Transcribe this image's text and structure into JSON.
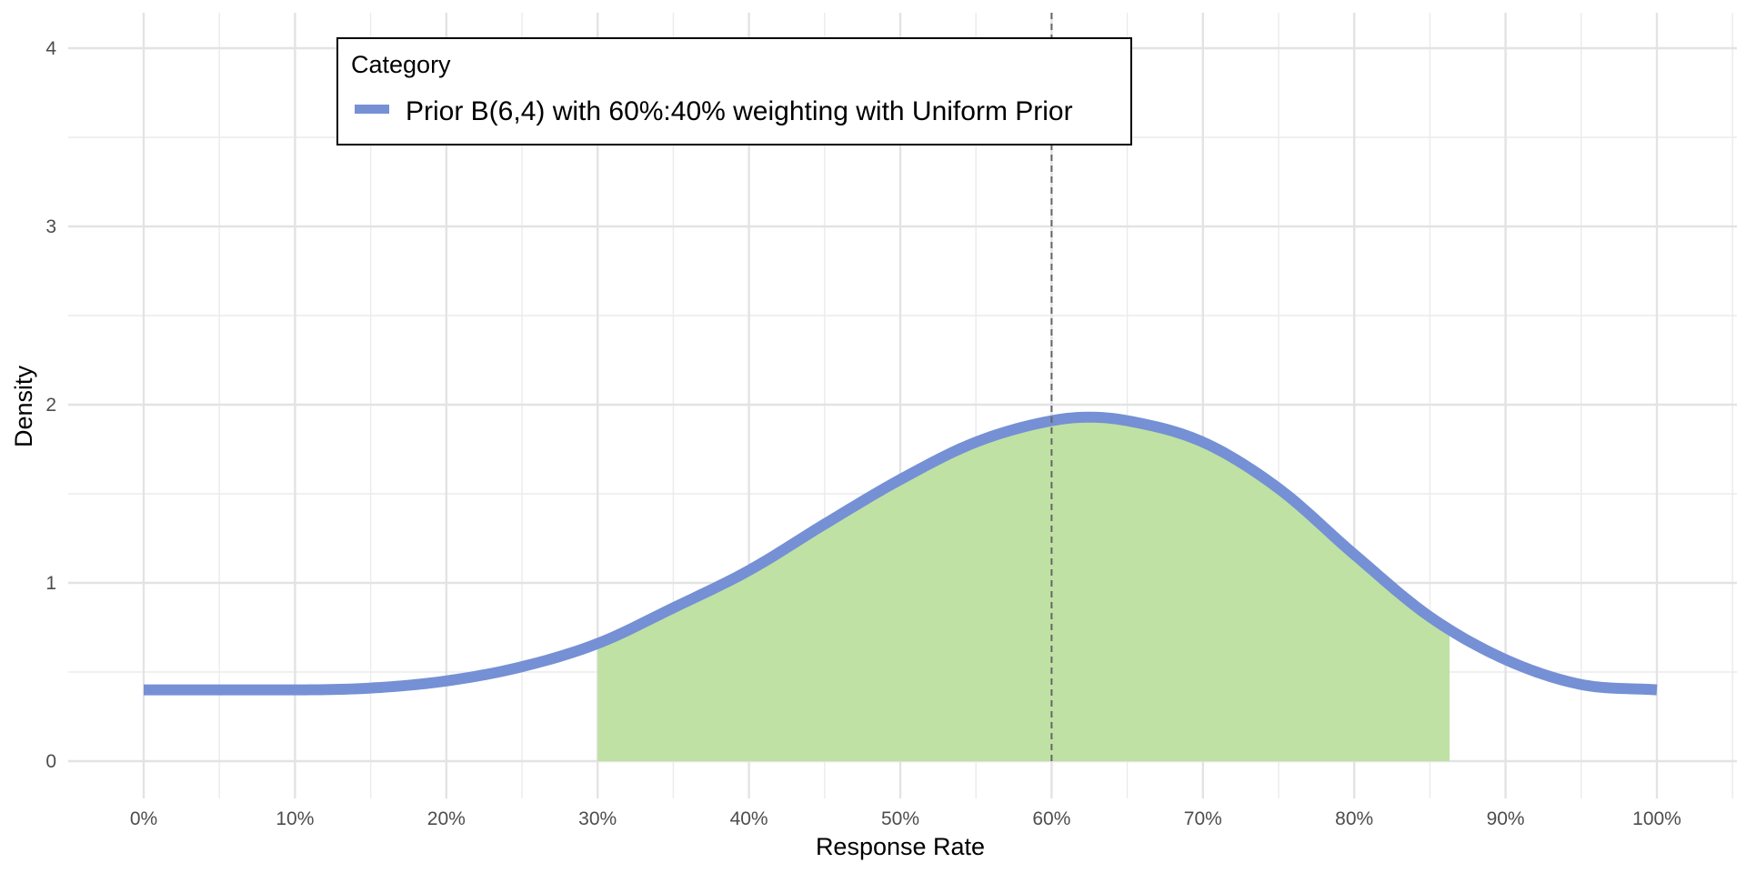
{
  "chart_data": {
    "type": "line",
    "xlabel": "Response Rate",
    "ylabel": "Density",
    "xlim": [
      -0.05,
      1.05
    ],
    "ylim": [
      -0.18,
      4.2
    ],
    "x_ticks": [
      0,
      0.1,
      0.2,
      0.3,
      0.4,
      0.5,
      0.6,
      0.7,
      0.8,
      0.9,
      1.0
    ],
    "x_tick_labels": [
      "0%",
      "10%",
      "20%",
      "30%",
      "40%",
      "50%",
      "60%",
      "70%",
      "80%",
      "90%",
      "100%"
    ],
    "y_ticks": [
      0,
      1,
      2,
      3,
      4
    ],
    "y_tick_labels": [
      "0",
      "1",
      "2",
      "3",
      "4"
    ],
    "grid": true,
    "legend": {
      "title": "Category",
      "placement": "top-left inside"
    },
    "series": [
      {
        "name": "Prior B(6,4) with 60%:40% weighting with Uniform Prior",
        "color": "#7590d4",
        "x": [
          0,
          0.05,
          0.1,
          0.15,
          0.2,
          0.25,
          0.3,
          0.35,
          0.4,
          0.45,
          0.5,
          0.55,
          0.6,
          0.625,
          0.65,
          0.7,
          0.75,
          0.8,
          0.85,
          0.9,
          0.95,
          1.0
        ],
        "y": [
          0.4,
          0.4,
          0.4,
          0.41,
          0.45,
          0.53,
          0.66,
          0.86,
          1.07,
          1.33,
          1.58,
          1.79,
          1.91,
          1.93,
          1.91,
          1.79,
          1.53,
          1.16,
          0.81,
          0.57,
          0.43,
          0.4
        ]
      }
    ],
    "shaded_region": {
      "x_from": 0.3,
      "x_to": 0.863,
      "color": "#bfe1a3"
    },
    "reference_line": {
      "x": 0.6,
      "style": "dashed",
      "color": "#666666"
    }
  }
}
